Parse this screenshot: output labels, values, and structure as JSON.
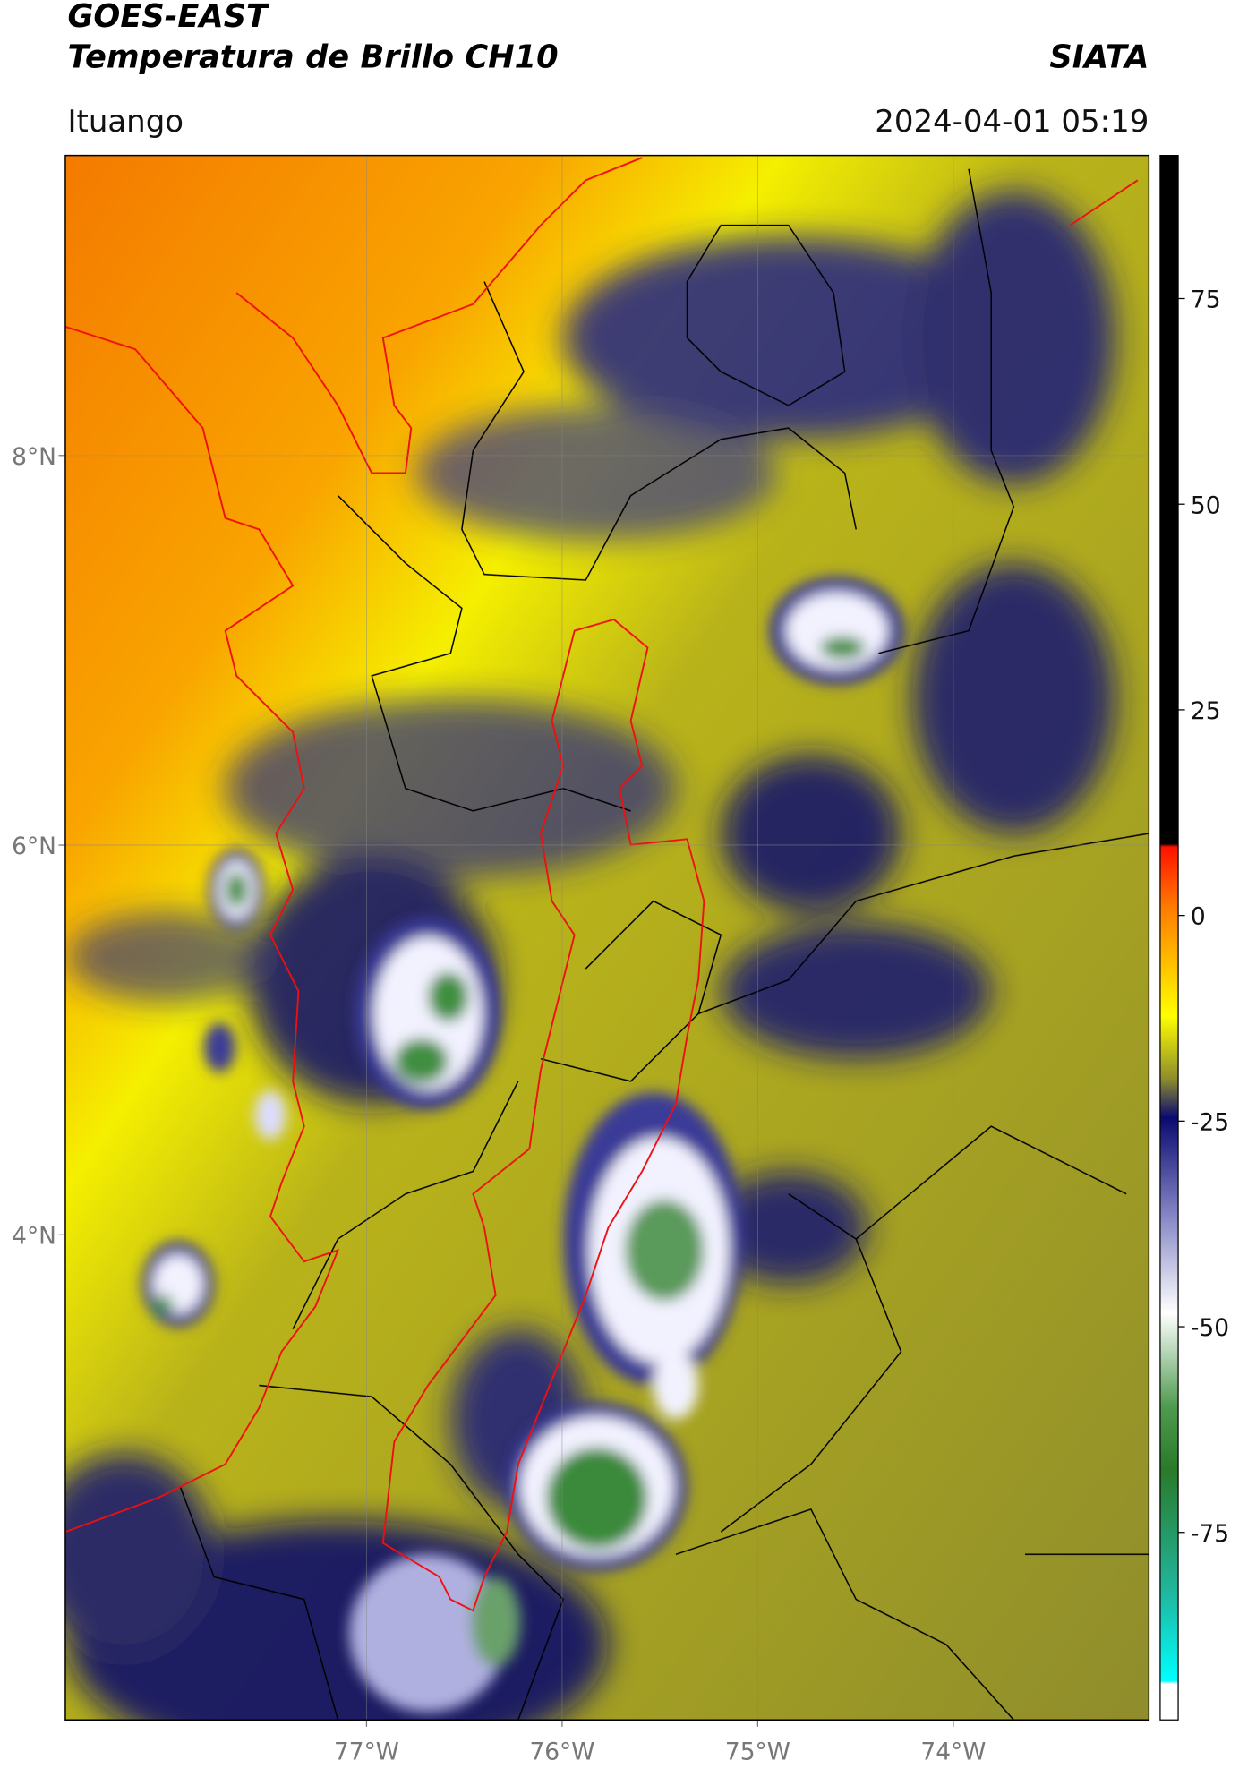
{
  "header": {
    "title_line1": "GOES-EAST",
    "title_line2": "Temperatura de Brillo CH10",
    "brand": "SIATA",
    "location": "Ituango",
    "datetime": "2024-04-01 05:19"
  },
  "map": {
    "lonlim": [
      -78.54,
      -73.0
    ],
    "latlim": [
      1.51,
      9.54
    ],
    "lon_ticks": [
      {
        "value": -77,
        "label": "77°W"
      },
      {
        "value": -76,
        "label": "76°W"
      },
      {
        "value": -75,
        "label": "75°W"
      },
      {
        "value": -74,
        "label": "74°W"
      }
    ],
    "lat_ticks": [
      {
        "value": 8,
        "label": "8°N"
      },
      {
        "value": 6,
        "label": "6°N"
      },
      {
        "value": 4,
        "label": "4°N"
      }
    ],
    "grid": true
  },
  "colorbar": {
    "lim": [
      -97.8,
      92.4
    ],
    "ticks": [
      75,
      50,
      25,
      0,
      -25,
      -50,
      -75
    ]
  }
}
